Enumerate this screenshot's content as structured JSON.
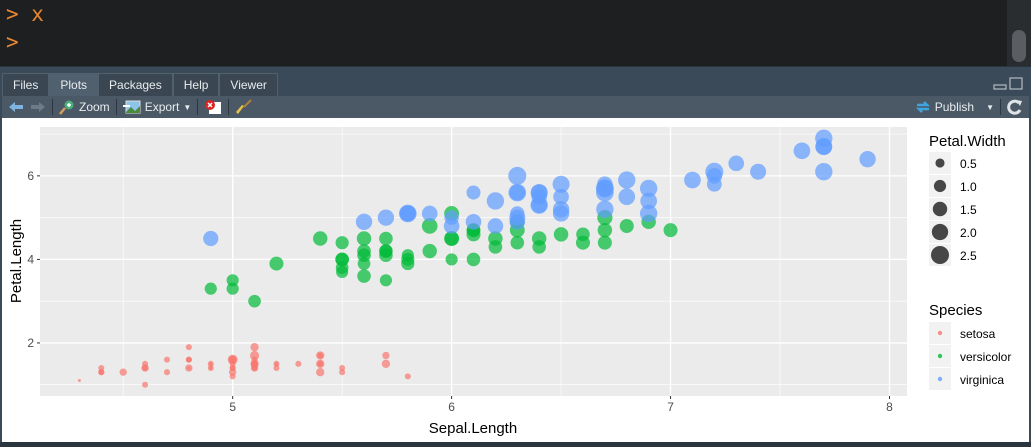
{
  "console": {
    "lines": [
      ">  x",
      ">"
    ]
  },
  "tabs": [
    {
      "label": "Files"
    },
    {
      "label": "Plots",
      "active": true
    },
    {
      "label": "Packages"
    },
    {
      "label": "Help"
    },
    {
      "label": "Viewer"
    }
  ],
  "toolbar": {
    "zoom": "Zoom",
    "export": "Export",
    "publish": "Publish"
  },
  "chart_data": {
    "type": "scatter",
    "xlabel": "Sepal.Length",
    "ylabel": "Petal.Length",
    "xlim": [
      4.12,
      8.08
    ],
    "ylim": [
      0.73,
      7.17
    ],
    "xticks": [
      5,
      6,
      7,
      8
    ],
    "yticks": [
      2,
      4,
      6
    ],
    "xtick_labels": [
      "5",
      "6",
      "7",
      "8"
    ],
    "ytick_labels": [
      "2",
      "4",
      "6"
    ],
    "size_legend": {
      "title": "Petal.Width",
      "values": [
        0.5,
        1.0,
        1.5,
        2.0,
        2.5
      ],
      "labels": [
        "0.5",
        "1.0",
        "1.5",
        "2.0",
        "2.5"
      ]
    },
    "color_legend": {
      "title": "Species",
      "entries": [
        {
          "label": "setosa",
          "color": "#F8766D"
        },
        {
          "label": "versicolor",
          "color": "#00BA38"
        },
        {
          "label": "virginica",
          "color": "#619CFF"
        }
      ]
    },
    "series": [
      {
        "name": "setosa",
        "points": [
          [
            5.1,
            1.4,
            0.2
          ],
          [
            4.9,
            1.4,
            0.2
          ],
          [
            4.7,
            1.3,
            0.2
          ],
          [
            4.6,
            1.5,
            0.2
          ],
          [
            5.0,
            1.4,
            0.2
          ],
          [
            5.4,
            1.7,
            0.4
          ],
          [
            4.6,
            1.4,
            0.3
          ],
          [
            5.0,
            1.5,
            0.2
          ],
          [
            4.4,
            1.4,
            0.2
          ],
          [
            4.9,
            1.5,
            0.1
          ],
          [
            5.4,
            1.5,
            0.2
          ],
          [
            4.8,
            1.6,
            0.2
          ],
          [
            4.8,
            1.4,
            0.1
          ],
          [
            4.3,
            1.1,
            0.1
          ],
          [
            5.8,
            1.2,
            0.2
          ],
          [
            5.7,
            1.5,
            0.4
          ],
          [
            5.4,
            1.3,
            0.4
          ],
          [
            5.1,
            1.4,
            0.3
          ],
          [
            5.7,
            1.7,
            0.3
          ],
          [
            5.1,
            1.5,
            0.3
          ],
          [
            5.4,
            1.7,
            0.2
          ],
          [
            5.1,
            1.5,
            0.4
          ],
          [
            4.6,
            1.0,
            0.2
          ],
          [
            5.1,
            1.7,
            0.5
          ],
          [
            4.8,
            1.9,
            0.2
          ],
          [
            5.0,
            1.6,
            0.2
          ],
          [
            5.0,
            1.6,
            0.4
          ],
          [
            5.2,
            1.5,
            0.2
          ],
          [
            5.2,
            1.4,
            0.2
          ],
          [
            4.7,
            1.6,
            0.2
          ],
          [
            4.8,
            1.6,
            0.2
          ],
          [
            5.4,
            1.5,
            0.4
          ],
          [
            5.2,
            1.5,
            0.1
          ],
          [
            5.5,
            1.4,
            0.2
          ],
          [
            4.9,
            1.5,
            0.2
          ],
          [
            5.0,
            1.2,
            0.2
          ],
          [
            5.5,
            1.3,
            0.2
          ],
          [
            4.9,
            1.4,
            0.1
          ],
          [
            4.4,
            1.3,
            0.2
          ],
          [
            5.1,
            1.5,
            0.2
          ],
          [
            5.0,
            1.3,
            0.3
          ],
          [
            4.5,
            1.3,
            0.3
          ],
          [
            4.4,
            1.3,
            0.2
          ],
          [
            5.0,
            1.6,
            0.6
          ],
          [
            5.1,
            1.9,
            0.4
          ],
          [
            4.8,
            1.4,
            0.3
          ],
          [
            5.1,
            1.6,
            0.2
          ],
          [
            4.6,
            1.4,
            0.2
          ],
          [
            5.3,
            1.5,
            0.2
          ],
          [
            5.0,
            1.4,
            0.2
          ]
        ]
      },
      {
        "name": "versicolor",
        "points": [
          [
            7.0,
            4.7,
            1.4
          ],
          [
            6.4,
            4.5,
            1.5
          ],
          [
            6.9,
            4.9,
            1.5
          ],
          [
            5.5,
            4.0,
            1.3
          ],
          [
            6.5,
            4.6,
            1.5
          ],
          [
            5.7,
            4.5,
            1.3
          ],
          [
            6.3,
            4.7,
            1.6
          ],
          [
            4.9,
            3.3,
            1.0
          ],
          [
            6.6,
            4.6,
            1.3
          ],
          [
            5.2,
            3.9,
            1.4
          ],
          [
            5.0,
            3.5,
            1.0
          ],
          [
            5.9,
            4.2,
            1.5
          ],
          [
            6.0,
            4.0,
            1.0
          ],
          [
            6.1,
            4.7,
            1.4
          ],
          [
            5.6,
            3.6,
            1.3
          ],
          [
            6.7,
            4.4,
            1.4
          ],
          [
            5.6,
            4.5,
            1.5
          ],
          [
            5.8,
            4.1,
            1.0
          ],
          [
            6.2,
            4.5,
            1.5
          ],
          [
            5.6,
            3.9,
            1.1
          ],
          [
            5.9,
            4.8,
            1.8
          ],
          [
            6.1,
            4.0,
            1.3
          ],
          [
            6.3,
            4.9,
            1.5
          ],
          [
            6.1,
            4.7,
            1.2
          ],
          [
            6.4,
            4.3,
            1.3
          ],
          [
            6.6,
            4.4,
            1.4
          ],
          [
            6.8,
            4.8,
            1.4
          ],
          [
            6.7,
            5.0,
            1.7
          ],
          [
            6.0,
            4.5,
            1.5
          ],
          [
            5.7,
            3.5,
            1.0
          ],
          [
            5.5,
            3.8,
            1.1
          ],
          [
            5.5,
            3.7,
            1.0
          ],
          [
            5.8,
            3.9,
            1.2
          ],
          [
            6.0,
            5.1,
            1.6
          ],
          [
            5.4,
            4.5,
            1.5
          ],
          [
            6.0,
            4.5,
            1.6
          ],
          [
            6.7,
            4.7,
            1.5
          ],
          [
            6.3,
            4.4,
            1.3
          ],
          [
            5.6,
            4.1,
            1.3
          ],
          [
            5.5,
            4.0,
            1.3
          ],
          [
            5.5,
            4.4,
            1.2
          ],
          [
            6.1,
            4.6,
            1.4
          ],
          [
            5.8,
            4.0,
            1.2
          ],
          [
            5.0,
            3.3,
            1.0
          ],
          [
            5.6,
            4.2,
            1.3
          ],
          [
            5.7,
            4.2,
            1.2
          ],
          [
            5.7,
            4.2,
            1.3
          ],
          [
            6.2,
            4.3,
            1.3
          ],
          [
            5.1,
            3.0,
            1.1
          ],
          [
            5.7,
            4.1,
            1.3
          ]
        ]
      },
      {
        "name": "virginica",
        "points": [
          [
            6.3,
            6.0,
            2.5
          ],
          [
            5.8,
            5.1,
            1.9
          ],
          [
            7.1,
            5.9,
            2.1
          ],
          [
            6.3,
            5.6,
            1.8
          ],
          [
            6.5,
            5.8,
            2.2
          ],
          [
            7.6,
            6.6,
            2.1
          ],
          [
            4.9,
            4.5,
            1.7
          ],
          [
            7.3,
            6.3,
            1.8
          ],
          [
            6.7,
            5.8,
            1.8
          ],
          [
            7.2,
            6.1,
            2.5
          ],
          [
            6.5,
            5.1,
            2.0
          ],
          [
            6.4,
            5.3,
            1.9
          ],
          [
            6.8,
            5.5,
            2.1
          ],
          [
            5.7,
            5.0,
            2.0
          ],
          [
            5.8,
            5.1,
            2.4
          ],
          [
            6.4,
            5.3,
            2.3
          ],
          [
            6.5,
            5.5,
            1.8
          ],
          [
            7.7,
            6.7,
            2.2
          ],
          [
            7.7,
            6.9,
            2.3
          ],
          [
            6.0,
            5.0,
            1.5
          ],
          [
            6.9,
            5.7,
            2.3
          ],
          [
            5.6,
            4.9,
            2.0
          ],
          [
            7.7,
            6.7,
            2.0
          ],
          [
            6.3,
            4.9,
            1.8
          ],
          [
            6.7,
            5.7,
            2.1
          ],
          [
            7.2,
            6.0,
            1.8
          ],
          [
            6.2,
            4.8,
            1.8
          ],
          [
            6.1,
            4.9,
            1.8
          ],
          [
            6.4,
            5.6,
            2.1
          ],
          [
            7.2,
            5.8,
            1.6
          ],
          [
            7.4,
            6.1,
            1.9
          ],
          [
            7.9,
            6.4,
            2.0
          ],
          [
            6.4,
            5.6,
            2.2
          ],
          [
            6.3,
            5.1,
            1.5
          ],
          [
            6.1,
            5.6,
            1.4
          ],
          [
            7.7,
            6.1,
            2.3
          ],
          [
            6.3,
            5.6,
            2.4
          ],
          [
            6.4,
            5.5,
            1.8
          ],
          [
            6.0,
            4.8,
            1.8
          ],
          [
            6.9,
            5.4,
            2.1
          ],
          [
            6.7,
            5.6,
            2.4
          ],
          [
            6.9,
            5.1,
            2.3
          ],
          [
            5.8,
            5.1,
            1.9
          ],
          [
            6.8,
            5.9,
            2.3
          ],
          [
            6.7,
            5.7,
            2.5
          ],
          [
            6.7,
            5.2,
            2.3
          ],
          [
            6.3,
            5.0,
            1.9
          ],
          [
            6.5,
            5.2,
            2.0
          ],
          [
            6.2,
            5.4,
            2.3
          ],
          [
            5.9,
            5.1,
            1.8
          ]
        ]
      }
    ]
  }
}
